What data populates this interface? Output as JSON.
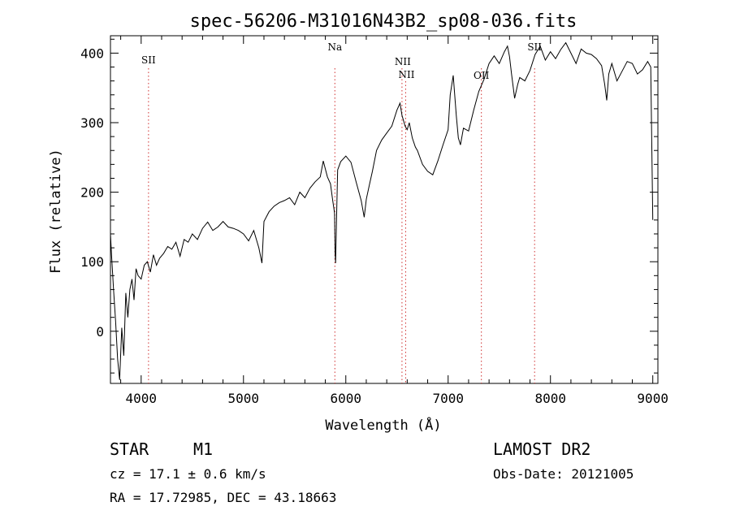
{
  "chart_data": {
    "type": "line",
    "title": "spec-56206-M31016N43B2_sp08-036.fits",
    "xlabel": "Wavelength (Å)",
    "ylabel": "Flux (relative)",
    "xlim": [
      3700,
      9050
    ],
    "ylim": [
      -75,
      425
    ],
    "x_ticks": [
      4000,
      5000,
      6000,
      7000,
      8000,
      9000
    ],
    "y_ticks": [
      0,
      100,
      200,
      300,
      400
    ],
    "grid": false,
    "series": [
      {
        "x": [
          3700,
          3710,
          3730,
          3750,
          3770,
          3790,
          3810,
          3830,
          3850,
          3870,
          3890,
          3910,
          3930,
          3950,
          3970,
          4000,
          4030,
          4060,
          4090,
          4120,
          4150,
          4180,
          4220,
          4260,
          4300,
          4340,
          4380,
          4420,
          4460,
          4500,
          4550,
          4600,
          4650,
          4700,
          4750,
          4800,
          4850,
          4900,
          4950,
          5000,
          5050,
          5100,
          5150,
          5180,
          5200,
          5250,
          5300,
          5350,
          5400,
          5450,
          5500,
          5550,
          5600,
          5650,
          5700,
          5750,
          5780,
          5820,
          5850,
          5870,
          5890,
          5895,
          5900,
          5910,
          5920,
          5950,
          6000,
          6050,
          6100,
          6150,
          6180,
          6200,
          6230,
          6260,
          6300,
          6350,
          6400,
          6450,
          6500,
          6530,
          6550,
          6560,
          6580,
          6600,
          6620,
          6650,
          6680,
          6700,
          6750,
          6800,
          6850,
          6900,
          6950,
          7000,
          7020,
          7050,
          7080,
          7100,
          7120,
          7150,
          7200,
          7250,
          7300,
          7350,
          7400,
          7450,
          7500,
          7550,
          7580,
          7600,
          7620,
          7650,
          7680,
          7700,
          7750,
          7800,
          7850,
          7900,
          7950,
          8000,
          8050,
          8100,
          8150,
          8200,
          8250,
          8300,
          8350,
          8400,
          8450,
          8500,
          8530,
          8550,
          8570,
          8600,
          8650,
          8700,
          8750,
          8800,
          8850,
          8900,
          8950,
          8980,
          9000
        ],
        "y": [
          140,
          110,
          60,
          15,
          -40,
          -70,
          5,
          -35,
          55,
          20,
          60,
          75,
          45,
          90,
          80,
          75,
          95,
          100,
          85,
          110,
          95,
          105,
          112,
          122,
          118,
          128,
          108,
          132,
          128,
          140,
          132,
          148,
          157,
          145,
          150,
          158,
          150,
          148,
          145,
          140,
          130,
          145,
          120,
          98,
          158,
          172,
          180,
          185,
          188,
          192,
          182,
          200,
          192,
          206,
          215,
          222,
          245,
          222,
          212,
          190,
          170,
          115,
          98,
          165,
          232,
          244,
          252,
          243,
          215,
          188,
          164,
          190,
          210,
          230,
          260,
          275,
          285,
          295,
          318,
          328,
          310,
          305,
          295,
          290,
          300,
          278,
          265,
          260,
          240,
          230,
          225,
          245,
          268,
          290,
          340,
          368,
          310,
          278,
          268,
          292,
          288,
          318,
          345,
          362,
          385,
          396,
          385,
          402,
          410,
          395,
          370,
          335,
          355,
          365,
          360,
          375,
          398,
          410,
          390,
          402,
          392,
          405,
          415,
          400,
          385,
          406,
          400,
          398,
          392,
          382,
          355,
          332,
          370,
          385,
          360,
          374,
          388,
          385,
          370,
          376,
          388,
          380,
          160
        ]
      }
    ],
    "lines": [
      {
        "label": "SII",
        "x": 4072
      },
      {
        "label": "Na",
        "x": 5893
      },
      {
        "label": "NII",
        "x": 6549
      },
      {
        "label": "NII",
        "x": 6585
      },
      {
        "label": "OII",
        "x": 7325
      },
      {
        "label": "SII",
        "x": 7845
      }
    ]
  },
  "footer": {
    "object_class": "STAR",
    "subclass": "M1",
    "redshift": "cz =  17.1 ± 0.6 km/s",
    "coords": "RA =   17.72985, DEC =   43.18663",
    "survey": "LAMOST DR2",
    "obs_date": "Obs-Date: 20121005"
  }
}
